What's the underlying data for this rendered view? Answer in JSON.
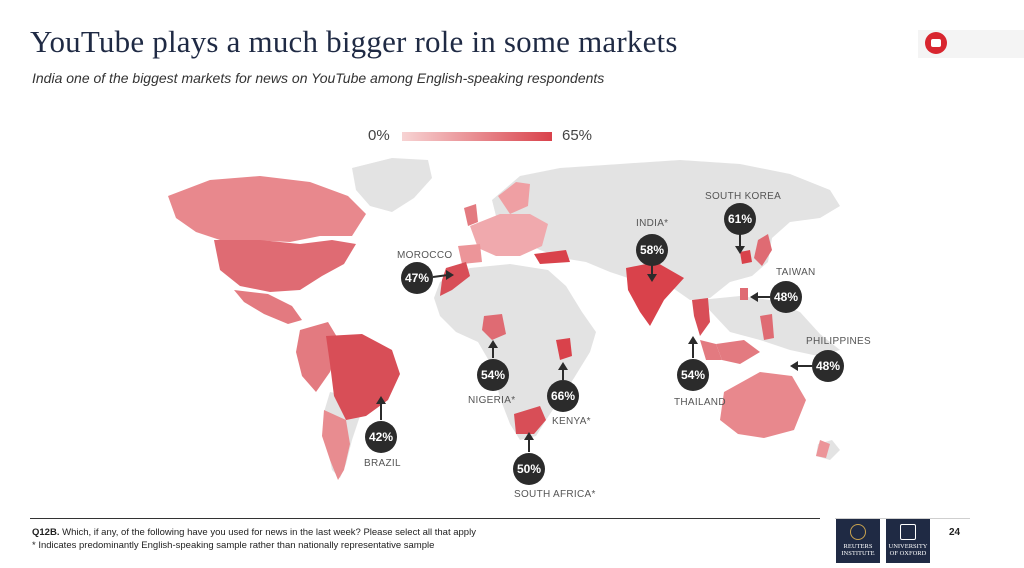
{
  "header": {
    "title": "YouTube plays a much bigger role in some markets",
    "subtitle": "India one of the biggest markets for news on YouTube among English-speaking respondents",
    "youtube_icon": "youtube-play-icon"
  },
  "legend": {
    "min_label": "0%",
    "max_label": "65%",
    "min_color": "#f7d3d3",
    "max_color": "#d9424b"
  },
  "markets": [
    {
      "country": "SOUTH KOREA",
      "value": "61%"
    },
    {
      "country": "INDIA*",
      "value": "58%"
    },
    {
      "country": "MOROCCO",
      "value": "47%"
    },
    {
      "country": "TAIWAN",
      "value": "48%"
    },
    {
      "country": "PHILIPPINES",
      "value": "48%"
    },
    {
      "country": "NIGERIA*",
      "value": "54%"
    },
    {
      "country": "KENYA*",
      "value": "66%"
    },
    {
      "country": "THAILAND",
      "value": "54%"
    },
    {
      "country": "BRAZIL",
      "value": "42%"
    },
    {
      "country": "SOUTH AFRICA*",
      "value": "50%"
    }
  ],
  "footer": {
    "question_code": "Q12B.",
    "question": "Which, if any, of the following have you used for news in the last week? Please select all that apply",
    "note": "* Indicates predominantly English-speaking sample rather than nationally representative sample",
    "logo_reuters": "REUTERS INSTITUTE",
    "logo_oxford": "UNIVERSITY OF OXFORD",
    "page_number": "24"
  }
}
